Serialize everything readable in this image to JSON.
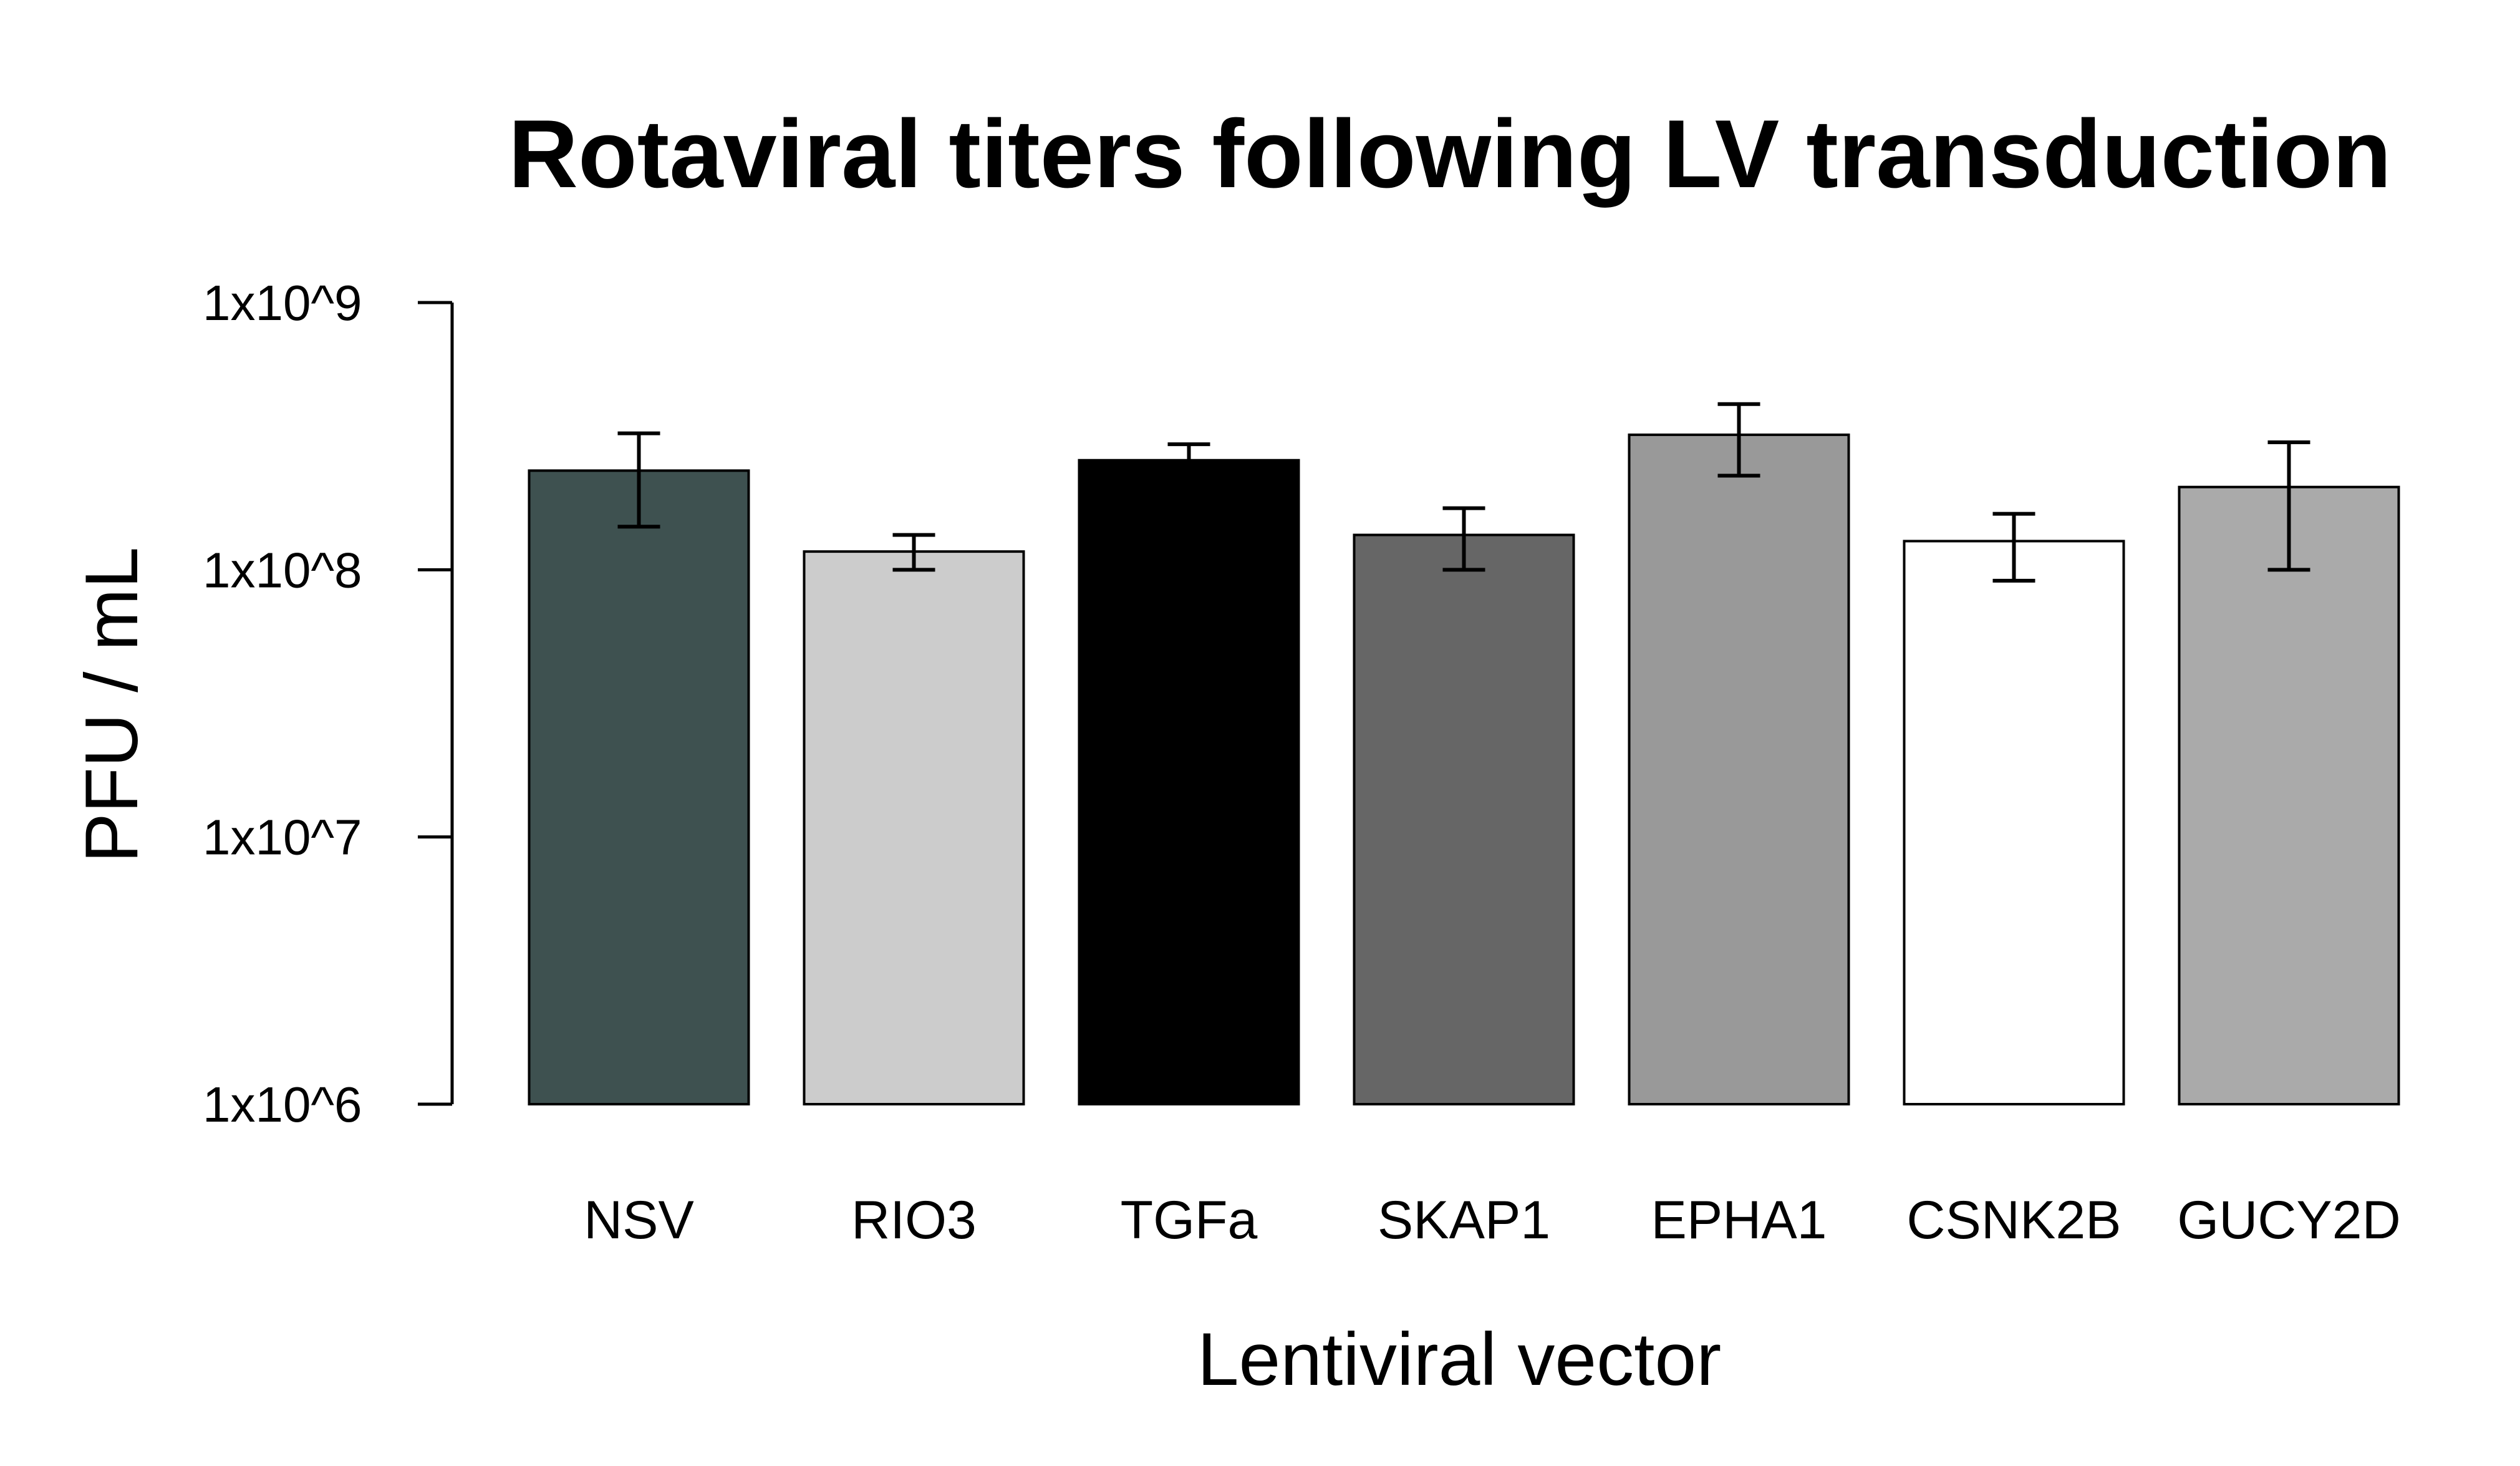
{
  "chart_data": {
    "type": "bar",
    "title": "Rotaviral titers following LV transduction",
    "xlabel": "Lentiviral vector",
    "ylabel": "PFU / mL",
    "y_scale": "log10",
    "ylim": [
      1000000,
      1000000000
    ],
    "y_ticks": [
      {
        "value": 1000000,
        "label": "1x10^6"
      },
      {
        "value": 10000000,
        "label": "1x10^7"
      },
      {
        "value": 100000000,
        "label": "1x10^8"
      },
      {
        "value": 1000000000,
        "label": "1x10^9"
      }
    ],
    "categories": [
      "NSV",
      "RIO3",
      "TGFa",
      "SKAP1",
      "EPHA1",
      "CSNK2B",
      "GUCY2D"
    ],
    "values": [
      235000000,
      117000000,
      257000000,
      135000000,
      320000000,
      128000000,
      204000000
    ],
    "error_low": [
      145000000,
      100000000,
      230000000,
      100000000,
      225000000,
      91000000,
      100000000
    ],
    "error_high": [
      324000000,
      135000000,
      295000000,
      170000000,
      417000000,
      162000000,
      300000000
    ],
    "bar_colors": [
      "#3e5150",
      "#cccccc",
      "#000000",
      "#666666",
      "#999999",
      "#ffffff",
      "#aaaaaa"
    ],
    "grid": false,
    "legend": "none"
  }
}
